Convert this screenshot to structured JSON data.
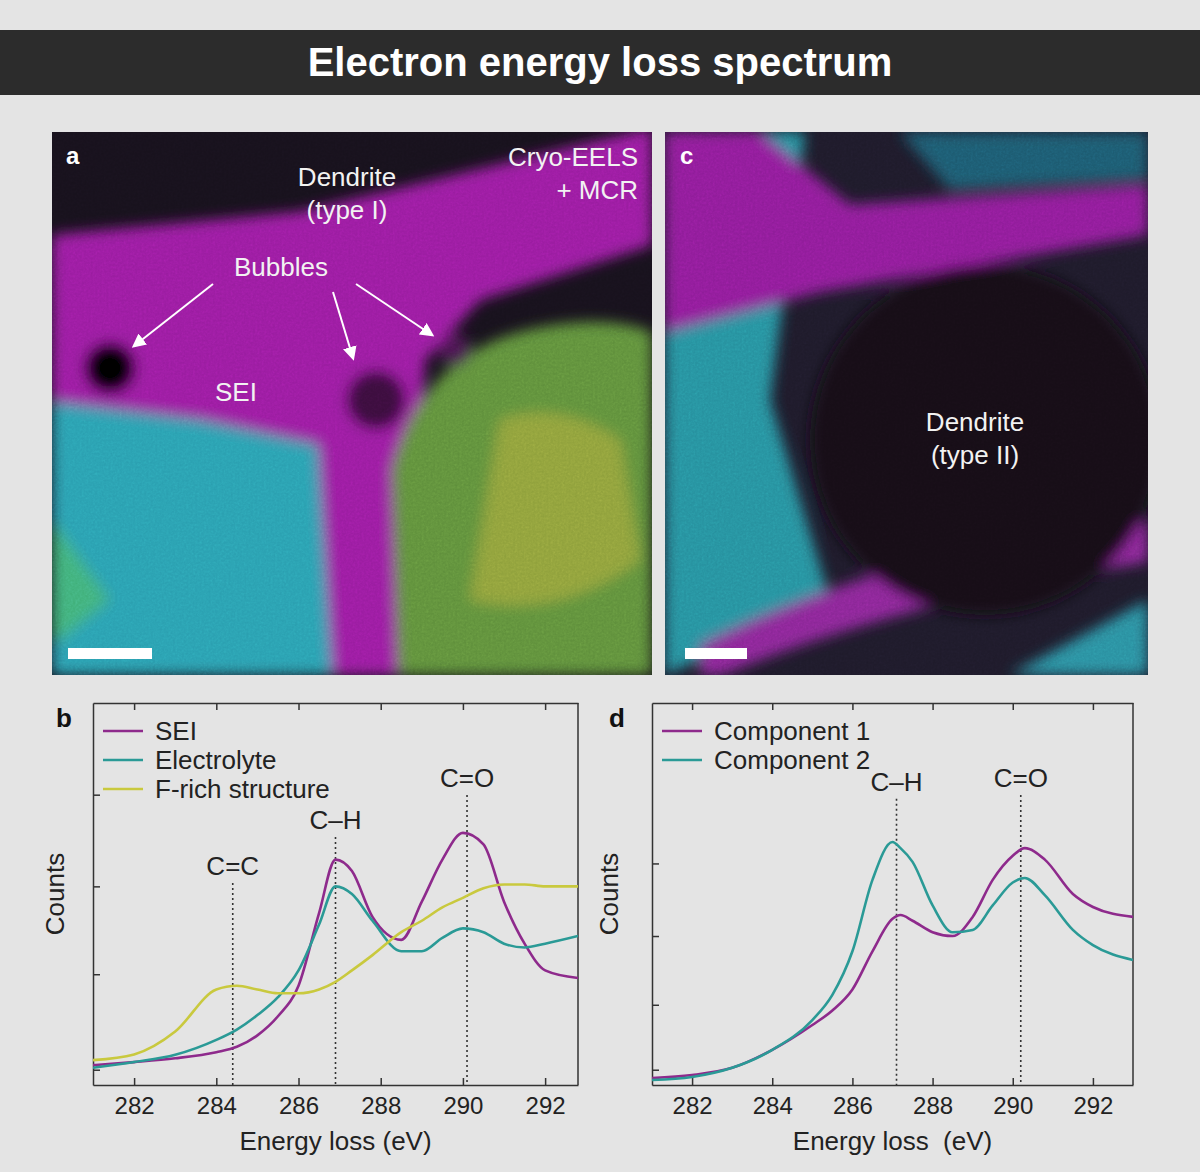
{
  "title": "Electron energy loss spectrum",
  "panels": [
    {
      "label": "a",
      "annotations": [
        {
          "lines": [
            "Dendrite",
            "(type I)"
          ]
        },
        {
          "lines": [
            "Cryo-EELS",
            "+ MCR"
          ]
        },
        {
          "lines": [
            "Bubbles"
          ]
        },
        {
          "lines": [
            "SEI"
          ]
        }
      ]
    },
    {
      "label": "c",
      "annotations": [
        {
          "lines": [
            "Dendrite",
            "(type II)"
          ]
        }
      ]
    }
  ],
  "chart_data": [
    {
      "type": "line",
      "panel_label": "b",
      "x_label": "Energy loss (eV)",
      "y_label": "Counts",
      "xlim": [
        281,
        292.8
      ],
      "xticks": [
        282,
        284,
        286,
        288,
        290,
        292
      ],
      "ylim": [
        0,
        100
      ],
      "yticks": [
        4,
        29,
        52,
        76
      ],
      "tick_labels": "x",
      "legend": "upper left",
      "x": [
        281,
        282,
        283,
        284,
        284.5,
        285,
        285.5,
        286,
        286.5,
        286.9,
        287.3,
        287.8,
        288.5,
        289,
        289.5,
        290,
        290.5,
        291,
        291.5,
        292,
        292.8
      ],
      "series": [
        {
          "name": "SEI",
          "color": "#8e2a8c",
          "values": [
            5.2,
            6,
            7,
            8.6,
            10,
            13,
            18,
            26,
            45,
            59,
            56,
            44,
            38,
            48,
            59,
            66,
            63,
            48,
            37,
            30,
            28
          ]
        },
        {
          "name": "Electrolyte",
          "color": "#2a9a96",
          "values": [
            4.5,
            6,
            7.9,
            11.8,
            14.5,
            18.3,
            23,
            30,
            42,
            52,
            50,
            43,
            35,
            35,
            38.5,
            41,
            40,
            37,
            36,
            37,
            39
          ]
        },
        {
          "name": "F-rich structure",
          "color": "#c9c93e",
          "values": [
            6.5,
            8,
            14,
            25,
            26,
            25,
            24,
            24,
            25,
            27,
            30,
            34,
            40,
            43,
            46.5,
            49,
            51.5,
            52.5,
            52.5,
            52,
            52
          ]
        }
      ],
      "annotations": [
        {
          "text": "C=C",
          "x": 284.4,
          "y": 55
        },
        {
          "text": "C–H",
          "x": 286.9,
          "y": 67
        },
        {
          "text": "C=O",
          "x": 290.1,
          "y": 78
        }
      ]
    },
    {
      "type": "line",
      "panel_label": "d",
      "x_label": "Energy loss  (eV)",
      "y_label": "Counts",
      "xlim": [
        281,
        293
      ],
      "xticks": [
        282,
        284,
        286,
        288,
        290,
        292
      ],
      "ylim": [
        0,
        100
      ],
      "yticks": [
        4,
        21,
        39,
        58
      ],
      "tick_labels": "x",
      "legend": "upper left",
      "x": [
        281,
        282,
        283,
        284,
        285,
        285.5,
        286,
        286.5,
        287,
        287.2,
        287.5,
        288,
        288.5,
        289,
        289.5,
        290,
        290.3,
        290.8,
        291.5,
        292,
        293
      ],
      "series": [
        {
          "name": "Component 1",
          "color": "#8e2a8c",
          "values": [
            1.8,
            2.6,
            4.5,
            9.2,
            15.7,
            19.5,
            25,
            35,
            43.5,
            44.5,
            43,
            40,
            39,
            44,
            53.7,
            60,
            62,
            59,
            50,
            46.6,
            44
          ]
        },
        {
          "name": "Component 2",
          "color": "#2a9a96",
          "values": [
            1.3,
            2.1,
            4.5,
            9.2,
            17,
            23.6,
            35,
            53.7,
            63.6,
            62,
            58.4,
            47,
            40,
            40.6,
            47,
            53,
            54.2,
            49.7,
            40.6,
            36.6,
            32.7
          ]
        }
      ],
      "annotations": [
        {
          "text": "C–H",
          "x": 287.1,
          "y": 77
        },
        {
          "text": "C=O",
          "x": 290.2,
          "y": 78
        }
      ]
    }
  ]
}
